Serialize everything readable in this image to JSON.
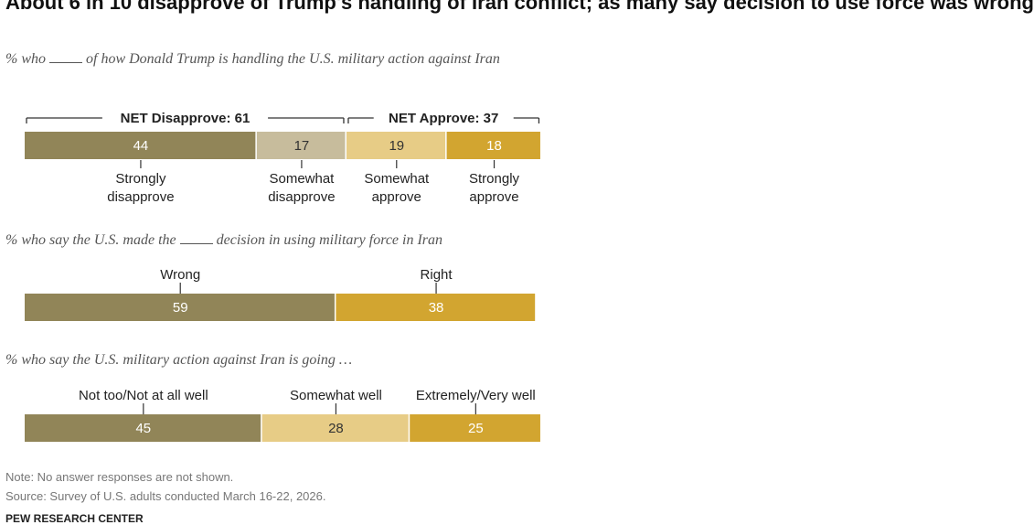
{
  "title": "About 6 in 10 disapprove of Trump's handling of Iran conflict; as many say decision to use force was wrong",
  "sections": [
    {
      "subtitle_before": "% who",
      "subtitle_after": "of how Donald Trump is handling the U.S. military action against Iran"
    },
    {
      "subtitle_before": "% who say the U.S. made the",
      "subtitle_after": "decision in using military force in Iran"
    },
    {
      "subtitle_before": "% who say the U.S. military action against Iran is going …",
      "subtitle_after": ""
    }
  ],
  "notes": {
    "note": "Note: No answer responses are not shown.",
    "source": "Source: Survey of U.S. adults conducted March 16-22, 2026.",
    "org": "PEW RESEARCH CENTER"
  },
  "colors": {
    "dark_olive": "#918558",
    "light_olive": "#c7bc9c",
    "light_gold": "#e7cc86",
    "gold": "#d2a530",
    "value_light": "#ffffff",
    "value_dark": "#333333"
  },
  "chart_data": [
    {
      "type": "bar",
      "orientation": "horizontal-stacked",
      "categories": [
        "Strongly disapprove",
        "Somewhat disapprove",
        "Somewhat approve",
        "Strongly approve"
      ],
      "values": [
        44,
        17,
        19,
        18
      ],
      "colors": [
        "#918558",
        "#c7bc9c",
        "#e7cc86",
        "#d2a530"
      ],
      "groups": [
        {
          "label": "NET Disapprove: 61",
          "members": [
            0,
            1
          ]
        },
        {
          "label": "NET Approve: 37",
          "members": [
            2,
            3
          ]
        }
      ]
    },
    {
      "type": "bar",
      "orientation": "horizontal-stacked",
      "categories": [
        "Wrong",
        "Right"
      ],
      "values": [
        59,
        38
      ],
      "colors": [
        "#918558",
        "#d2a530"
      ]
    },
    {
      "type": "bar",
      "orientation": "horizontal-stacked",
      "categories": [
        "Not too/Not at all well",
        "Somewhat well",
        "Extremely/Very well"
      ],
      "values": [
        45,
        28,
        25
      ],
      "colors": [
        "#918558",
        "#e7cc86",
        "#d2a530"
      ]
    }
  ]
}
